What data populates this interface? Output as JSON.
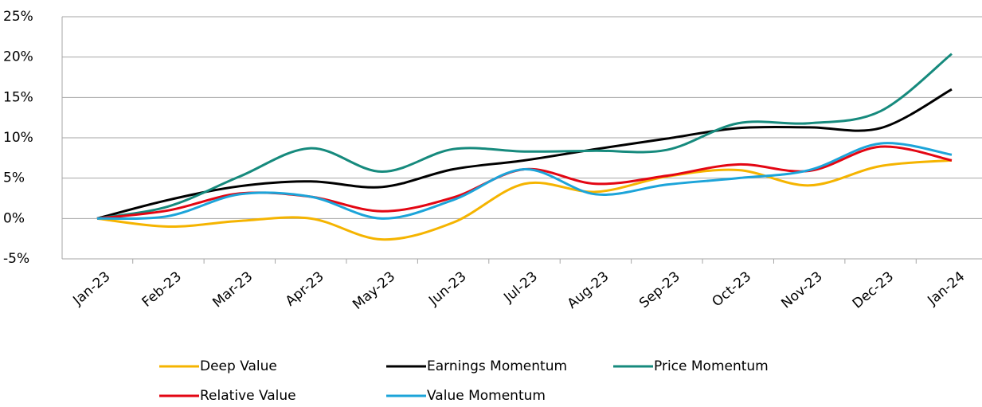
{
  "chart_data": {
    "type": "line",
    "categories": [
      "Jan-23",
      "Feb-23",
      "Mar-23",
      "Apr-23",
      "May-23",
      "Jun-23",
      "Jul-23",
      "Aug-23",
      "Sep-23",
      "Oct-23",
      "Nov-23",
      "Dec-23",
      "Jan-24"
    ],
    "series": [
      {
        "name": "Deep Value",
        "color": "#f5b400",
        "values": [
          0,
          -1.0,
          -0.3,
          0,
          -2.6,
          -0.5,
          4.3,
          3.3,
          5.2,
          6.0,
          4.1,
          6.5,
          7.2
        ]
      },
      {
        "name": "Earnings Momentum",
        "color": "#000000",
        "values": [
          0,
          2.3,
          4.0,
          4.6,
          3.9,
          6.1,
          7.2,
          8.6,
          9.9,
          11.2,
          11.3,
          11.2,
          16.0
        ]
      },
      {
        "name": "Price Momentum",
        "color": "#168a7d",
        "values": [
          0,
          1.5,
          5.2,
          8.7,
          5.8,
          8.6,
          8.3,
          8.4,
          8.5,
          11.8,
          11.8,
          13.3,
          20.4
        ]
      },
      {
        "name": "Relative Value",
        "color": "#e30613",
        "values": [
          0,
          1.0,
          3.1,
          2.7,
          0.9,
          2.6,
          6.1,
          4.3,
          5.3,
          6.7,
          5.9,
          8.9,
          7.2
        ]
      },
      {
        "name": "Value Momentum",
        "color": "#1ca4d9",
        "values": [
          0,
          0.3,
          3.0,
          2.7,
          0.0,
          2.3,
          6.1,
          3.0,
          4.2,
          5.0,
          6.0,
          9.3,
          7.9
        ]
      }
    ],
    "ylim": [
      -5,
      25
    ],
    "yticks": [
      {
        "value": -5,
        "label": "-5%"
      },
      {
        "value": 0,
        "label": "0%"
      },
      {
        "value": 5,
        "label": "5%"
      },
      {
        "value": 10,
        "label": "10%"
      },
      {
        "value": 15,
        "label": "15%"
      },
      {
        "value": 20,
        "label": "20%"
      },
      {
        "value": 25,
        "label": "25%"
      }
    ],
    "grid": true
  }
}
